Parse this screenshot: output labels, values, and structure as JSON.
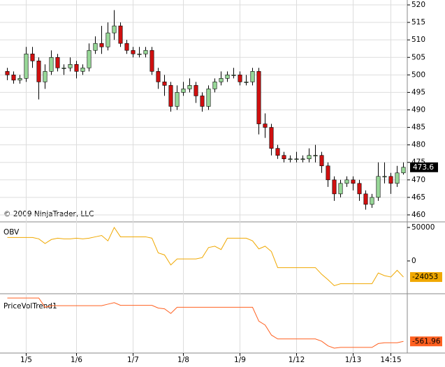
{
  "chart_data": {
    "type": "candlestick",
    "copyright": "© 2009 NinjaTrader, LLC",
    "categories": [
      null,
      null,
      null,
      "1/5",
      null,
      null,
      null,
      null,
      null,
      null,
      null,
      "1/6",
      null,
      null,
      null,
      null,
      null,
      null,
      null,
      null,
      "1/7",
      null,
      null,
      null,
      null,
      null,
      null,
      null,
      "1/8",
      null,
      null,
      null,
      null,
      null,
      null,
      null,
      null,
      "1/9",
      null,
      null,
      null,
      null,
      null,
      null,
      null,
      null,
      "1/12",
      null,
      null,
      null,
      null,
      null,
      null,
      null,
      null,
      "1/13",
      null,
      null,
      null,
      null,
      null,
      "14:15",
      null,
      null
    ],
    "open": [
      501,
      500,
      498.5,
      499,
      506,
      504,
      498,
      501,
      505,
      502,
      502,
      503,
      501,
      502,
      507,
      509,
      508,
      512,
      514,
      509,
      507,
      506,
      506,
      507,
      501,
      498,
      497,
      491,
      495,
      496,
      497,
      494,
      491,
      496,
      498,
      499,
      500,
      500,
      498,
      498,
      501,
      486,
      485,
      479,
      477,
      476,
      476,
      476,
      476,
      477,
      477,
      474,
      470,
      466,
      469,
      470,
      469,
      466,
      463,
      465,
      471,
      471,
      469,
      472
    ],
    "high": [
      502,
      501,
      500,
      508,
      508,
      505,
      503,
      507,
      506,
      503,
      505,
      504,
      503,
      509,
      511,
      514,
      515,
      518.5,
      515,
      510,
      508,
      508,
      508,
      508,
      502,
      500,
      498,
      497,
      498,
      499,
      498,
      495,
      497,
      499,
      501,
      501,
      502,
      501,
      500,
      502,
      502,
      489,
      486,
      480,
      478,
      477,
      478,
      477,
      479,
      480,
      478,
      475,
      471,
      470,
      471,
      471,
      470,
      467,
      466,
      475,
      475,
      472,
      474,
      475
    ],
    "low": [
      498.5,
      497.5,
      497.5,
      498,
      502,
      493,
      496,
      500,
      501,
      500,
      501,
      499,
      500,
      501,
      506,
      506,
      507,
      510,
      508,
      506,
      505,
      505,
      505,
      500,
      496,
      494,
      489.5,
      490,
      494,
      495,
      492,
      489.5,
      490,
      495,
      497,
      498,
      499,
      497,
      497,
      497,
      483,
      482,
      477,
      476,
      475,
      475,
      475,
      475,
      475,
      475,
      472,
      468,
      464,
      465,
      468,
      467,
      464,
      461.5,
      462,
      464,
      469,
      466,
      468,
      471.5
    ],
    "close": [
      500,
      498.5,
      499,
      506,
      504,
      498,
      501,
      505,
      502,
      502,
      503,
      501,
      502,
      507,
      509,
      508,
      512,
      514,
      509,
      507,
      506,
      506,
      507,
      501,
      498,
      497,
      491,
      495,
      496,
      497,
      494,
      491,
      496,
      498,
      499,
      500,
      500,
      498,
      498,
      501,
      486,
      485,
      479,
      477,
      476,
      476,
      476,
      476,
      477,
      477,
      474,
      470,
      466,
      469,
      470,
      469,
      466,
      463,
      465,
      471,
      471,
      469,
      472,
      473.6
    ],
    "up_color": "#98d898",
    "down_color": "#d01010",
    "ylim": [
      458,
      521.4
    ],
    "yticks": [
      460,
      465,
      470,
      475,
      480,
      485,
      490,
      495,
      500,
      505,
      510,
      515,
      520
    ],
    "grid": true,
    "panels": [
      {
        "type": "line",
        "name": "OBV",
        "color": "#f0a800",
        "values": [
          35000,
          35000,
          35000,
          35000,
          35000,
          33000,
          26000,
          32000,
          34000,
          33000,
          33000,
          34000,
          33000,
          34000,
          36000,
          38000,
          30000,
          50000,
          36000,
          36000,
          36000,
          36000,
          36000,
          34000,
          12000,
          9000,
          -6000,
          3000,
          3000,
          3000,
          3000,
          5000,
          20000,
          22000,
          17000,
          34000,
          34000,
          34000,
          34000,
          30000,
          18000,
          22000,
          14000,
          -10000,
          -10000,
          -10000,
          -10000,
          -10000,
          -10000,
          -10000,
          -20000,
          -28000,
          -37000,
          -34000,
          -34000,
          -34000,
          -34000,
          -34000,
          -34000,
          -18000,
          -22000,
          -24000,
          -14000,
          -24053
        ],
        "ylim": [
          -49000,
          57300
        ],
        "yticks": [
          0,
          50000
        ]
      },
      {
        "type": "line",
        "name": "PriceVolTrend1",
        "color": "#ff6020",
        "values": [
          0,
          0,
          0,
          0,
          0,
          0,
          -120,
          -100,
          -100,
          -100,
          -100,
          -100,
          -100,
          -100,
          -100,
          -100,
          -80,
          -60,
          -95,
          -95,
          -95,
          -95,
          -95,
          -95,
          -130,
          -140,
          -200,
          -120,
          -120,
          -120,
          -120,
          -120,
          -120,
          -120,
          -120,
          -120,
          -120,
          -120,
          -120,
          -120,
          -300,
          -350,
          -480,
          -530,
          -530,
          -530,
          -530,
          -530,
          -530,
          -530,
          -560,
          -620,
          -650,
          -640,
          -640,
          -640,
          -640,
          -640,
          -640,
          -590,
          -580,
          -580,
          -580,
          -561.96
        ],
        "ylim": [
          -713,
          46
        ]
      }
    ]
  }
}
